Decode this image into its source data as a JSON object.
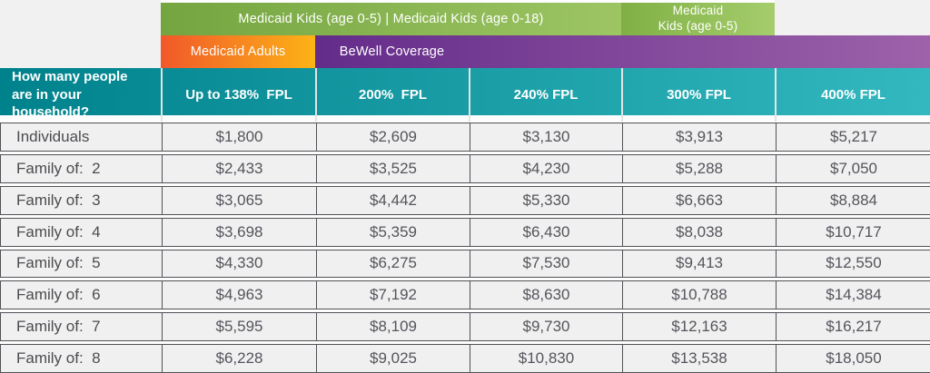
{
  "banners": {
    "kids_combined": "Medicaid Kids (age 0-5) | Medicaid Kids (age 0-18)",
    "kids_small_line1": "Medicaid",
    "kids_small_line2": "Kids (age 0-5)",
    "adults": "Medicaid Adults",
    "bewell": "BeWell Coverage"
  },
  "header": {
    "household_label": "How many people are in your household?",
    "columns": [
      "Up to 138%  FPL",
      "200%  FPL",
      "240% FPL",
      "300% FPL",
      "400% FPL"
    ]
  },
  "table": {
    "rows": [
      {
        "label": "Individuals",
        "values": [
          "$1,800",
          "$2,609",
          "$3,130",
          "$3,913",
          "$5,217"
        ]
      },
      {
        "label": "Family of:  2",
        "values": [
          "$2,433",
          "$3,525",
          "$4,230",
          "$5,288",
          "$7,050"
        ]
      },
      {
        "label": "Family of:  3",
        "values": [
          "$3,065",
          "$4,442",
          "$5,330",
          "$6,663",
          "$8,884"
        ]
      },
      {
        "label": "Family of:  4",
        "values": [
          "$3,698",
          "$5,359",
          "$6,430",
          "$8,038",
          "$10,717"
        ]
      },
      {
        "label": "Family of:  5",
        "values": [
          "$4,330",
          "$6,275",
          "$7,530",
          "$9,413",
          "$12,550"
        ]
      },
      {
        "label": "Family of:  6",
        "values": [
          "$4,963",
          "$7,192",
          "$8,630",
          "$10,788",
          "$14,384"
        ]
      },
      {
        "label": "Family of:  7",
        "values": [
          "$5,595",
          "$8,109",
          "$9,730",
          "$12,163",
          "$16,217"
        ]
      },
      {
        "label": "Family of:  8",
        "values": [
          "$6,228",
          "$9,025",
          "$10,830",
          "$13,538",
          "$18,050"
        ]
      }
    ]
  },
  "colors": {
    "teal_left": "#00828c",
    "teal_right": "#33b8bf",
    "green_main_left": "#74a540",
    "green_main_right": "#9dc563",
    "green_small_left": "#80b045",
    "green_small_right": "#a5cd6c",
    "orange_left": "#f1582a",
    "orange_right": "#fcb316",
    "purple_left": "#642c8a",
    "purple_right": "#9d62aa",
    "row_bg": "#f0f0f1",
    "row_border": "#515257"
  },
  "chart_data": {
    "type": "table",
    "title": "Monthly income eligibility by household size and Federal Poverty Level",
    "row_header": "How many people are in your household?",
    "columns": [
      "Up to 138% FPL",
      "200% FPL",
      "240% FPL",
      "300% FPL",
      "400% FPL"
    ],
    "column_programs": {
      "Up to 138% FPL": [
        "Medicaid Adults",
        "Medicaid Kids (age 0-5) | Medicaid Kids (age 0-18)"
      ],
      "200% FPL": [
        "BeWell Coverage",
        "Medicaid Kids (age 0-5) | Medicaid Kids (age 0-18)"
      ],
      "240% FPL": [
        "BeWell Coverage",
        "Medicaid Kids (age 0-5) | Medicaid Kids (age 0-18)"
      ],
      "300% FPL": [
        "BeWell Coverage",
        "Medicaid Kids (age 0-5)"
      ],
      "400% FPL": [
        "BeWell Coverage"
      ]
    },
    "categories": [
      "Individuals",
      "Family of: 2",
      "Family of: 3",
      "Family of: 4",
      "Family of: 5",
      "Family of: 6",
      "Family of: 7",
      "Family of: 8"
    ],
    "values": [
      [
        1800,
        2609,
        3130,
        3913,
        5217
      ],
      [
        2433,
        3525,
        4230,
        5288,
        7050
      ],
      [
        3065,
        4442,
        5330,
        6663,
        8884
      ],
      [
        3698,
        5359,
        6430,
        8038,
        10717
      ],
      [
        4330,
        6275,
        7530,
        9413,
        12550
      ],
      [
        4963,
        7192,
        8630,
        10788,
        14384
      ],
      [
        5595,
        8109,
        9730,
        12163,
        16217
      ],
      [
        6228,
        9025,
        10830,
        13538,
        18050
      ]
    ]
  }
}
